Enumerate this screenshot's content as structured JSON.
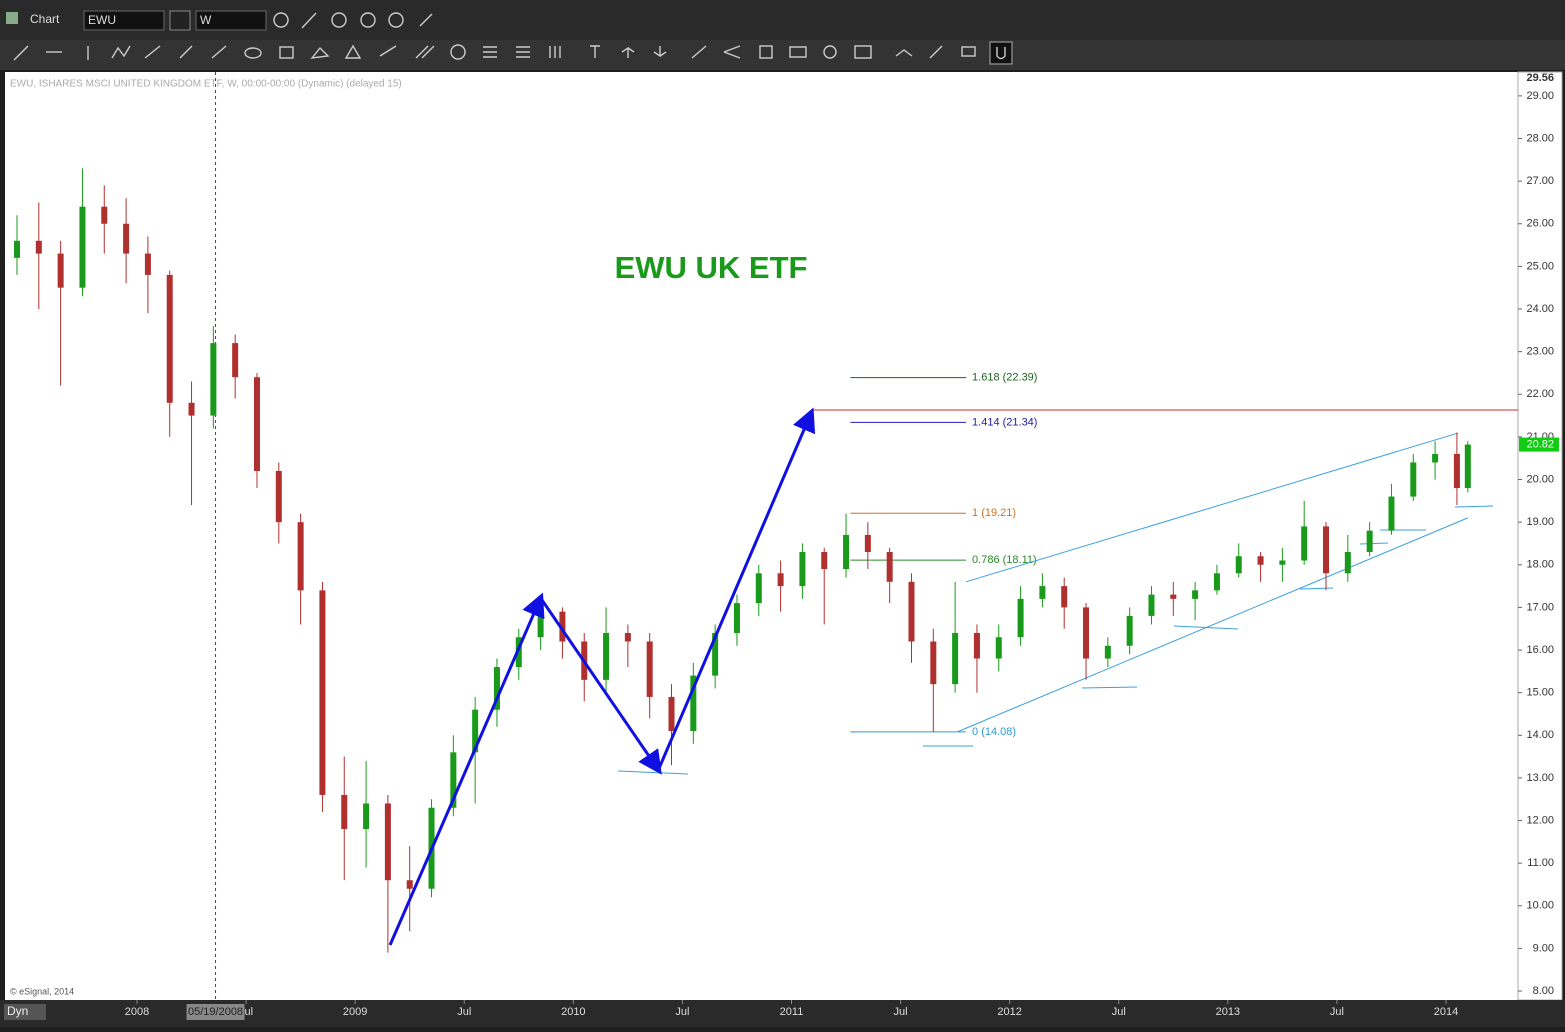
{
  "ui": {
    "window_title": "Chart",
    "symbol": "EWU",
    "interval": "W",
    "mode": "Dyn",
    "cursor_date": "05/19/2008"
  },
  "chart_data": {
    "type": "candlestick",
    "info": "EWU, ISHARES MSCI UNITED KINGDOM ETF, W, 00:00-00:00 (Dynamic) (delayed 15)",
    "credit": "© eSignal, 2014",
    "title": "EWU UK ETF",
    "up_color": "#1a9a1a",
    "down_color": "#b03030",
    "x": [
      2007.45,
      2007.55,
      2007.65,
      2007.75,
      2007.85,
      2007.95,
      2008.05,
      2008.15,
      2008.25,
      2008.35,
      2008.45,
      2008.55,
      2008.65,
      2008.75,
      2008.85,
      2008.95,
      2009.05,
      2009.15,
      2009.25,
      2009.35,
      2009.45,
      2009.55,
      2009.65,
      2009.75,
      2009.85,
      2009.95,
      2010.05,
      2010.15,
      2010.25,
      2010.35,
      2010.45,
      2010.55,
      2010.65,
      2010.75,
      2010.85,
      2010.95,
      2011.05,
      2011.15,
      2011.25,
      2011.35,
      2011.45,
      2011.55,
      2011.65,
      2011.75,
      2011.85,
      2011.95,
      2012.05,
      2012.15,
      2012.25,
      2012.35,
      2012.45,
      2012.55,
      2012.65,
      2012.75,
      2012.85,
      2012.95,
      2013.05,
      2013.15,
      2013.25,
      2013.35,
      2013.45,
      2013.55,
      2013.65,
      2013.75,
      2013.85,
      2013.95,
      2014.05,
      2014.1
    ],
    "open": [
      25.2,
      25.6,
      25.3,
      24.5,
      26.4,
      26.0,
      25.3,
      24.8,
      21.8,
      21.5,
      23.2,
      22.4,
      20.2,
      19.0,
      17.4,
      12.6,
      11.8,
      12.4,
      10.6,
      10.4,
      12.3,
      13.6,
      14.6,
      15.6,
      16.3,
      16.9,
      16.2,
      15.3,
      16.4,
      16.2,
      14.9,
      14.1,
      15.4,
      16.4,
      17.1,
      17.8,
      17.5,
      18.3,
      17.9,
      18.7,
      18.3,
      17.6,
      16.2,
      15.2,
      16.4,
      15.8,
      16.3,
      17.2,
      17.5,
      17.0,
      15.8,
      16.1,
      16.8,
      17.3,
      17.2,
      17.4,
      17.8,
      18.2,
      18.0,
      18.1,
      18.9,
      17.8,
      18.3,
      18.8,
      19.6,
      20.4,
      20.6,
      19.8
    ],
    "high": [
      26.2,
      26.5,
      25.6,
      27.3,
      26.9,
      26.6,
      25.7,
      24.9,
      22.3,
      23.6,
      23.4,
      22.5,
      20.4,
      19.2,
      17.6,
      13.5,
      13.4,
      12.6,
      11.4,
      12.5,
      14.0,
      14.9,
      15.8,
      16.5,
      17.2,
      17.0,
      16.4,
      17.0,
      16.6,
      16.4,
      15.2,
      15.7,
      16.6,
      17.3,
      18.0,
      18.1,
      18.5,
      18.4,
      19.2,
      19.0,
      18.4,
      17.8,
      16.5,
      17.6,
      16.6,
      16.6,
      17.5,
      17.8,
      17.7,
      17.1,
      16.3,
      17.0,
      17.5,
      17.6,
      17.6,
      18.0,
      18.5,
      18.3,
      18.4,
      19.5,
      19.0,
      18.7,
      19.0,
      19.9,
      20.6,
      20.9,
      21.1,
      20.9
    ],
    "low": [
      24.8,
      24.0,
      22.2,
      24.3,
      25.3,
      24.6,
      23.9,
      21.0,
      19.4,
      21.2,
      21.9,
      19.8,
      18.5,
      16.6,
      12.2,
      10.6,
      10.9,
      8.9,
      9.4,
      10.2,
      12.1,
      12.4,
      14.2,
      15.3,
      16.0,
      15.8,
      14.8,
      15.0,
      15.6,
      14.4,
      13.3,
      13.8,
      15.1,
      16.1,
      16.8,
      16.9,
      17.2,
      16.6,
      17.7,
      17.9,
      17.1,
      15.7,
      14.08,
      15.0,
      15.0,
      15.5,
      16.1,
      17.0,
      16.5,
      15.3,
      15.6,
      15.9,
      16.6,
      16.8,
      16.7,
      17.3,
      17.7,
      17.6,
      17.6,
      18.0,
      17.4,
      17.6,
      18.2,
      18.7,
      19.5,
      20.0,
      19.4,
      19.7
    ],
    "close": [
      25.6,
      25.3,
      24.5,
      26.4,
      26.0,
      25.3,
      24.8,
      21.8,
      21.5,
      23.2,
      22.4,
      20.2,
      19.0,
      17.4,
      12.6,
      11.8,
      12.4,
      10.6,
      10.4,
      12.3,
      13.6,
      14.6,
      15.6,
      16.3,
      16.9,
      16.2,
      15.3,
      16.4,
      16.2,
      14.9,
      14.1,
      15.4,
      16.4,
      17.1,
      17.8,
      17.5,
      18.3,
      17.9,
      18.7,
      18.3,
      17.6,
      16.2,
      15.2,
      16.4,
      15.8,
      16.3,
      17.2,
      17.5,
      17.0,
      15.8,
      16.1,
      16.8,
      17.3,
      17.2,
      17.4,
      17.8,
      18.2,
      18.0,
      18.1,
      18.9,
      17.8,
      18.3,
      18.8,
      19.6,
      20.4,
      20.6,
      19.8,
      20.82
    ],
    "xlim": [
      2007.395,
      2014.33
    ],
    "xticks": [
      2008,
      {
        "value": 2008.5,
        "label": "Jul"
      },
      2009,
      {
        "value": 2009.5,
        "label": "Jul"
      },
      2010,
      {
        "value": 2010.5,
        "label": "Jul"
      },
      2011,
      {
        "value": 2011.5,
        "label": "Jul"
      },
      2012,
      {
        "value": 2012.5,
        "label": "Jul"
      },
      2013,
      {
        "value": 2013.5,
        "label": "Jul"
      },
      2014
    ],
    "ylim": [
      7.79,
      29.56
    ],
    "yticks": [
      {
        "value": 8,
        "label": "8.00"
      },
      {
        "value": 9,
        "label": "9.00"
      },
      {
        "value": 10,
        "label": "10.00"
      },
      {
        "value": 11,
        "label": "11.00"
      },
      {
        "value": 12,
        "label": "12.00"
      },
      {
        "value": 13,
        "label": "13.00"
      },
      {
        "value": 14,
        "label": "14.00"
      },
      {
        "value": 15,
        "label": "15.00"
      },
      {
        "value": 16,
        "label": "16.00"
      },
      {
        "value": 17,
        "label": "17.00"
      },
      {
        "value": 18,
        "label": "18.00"
      },
      {
        "value": 19,
        "label": "19.00"
      },
      {
        "value": 20,
        "label": "20.00"
      },
      {
        "value": 21,
        "label": "21.00"
      },
      {
        "value": 22,
        "label": "22.00"
      },
      {
        "value": 23,
        "label": "23.00"
      },
      {
        "value": 24,
        "label": "24.00"
      },
      {
        "value": 25,
        "label": "25.00"
      },
      {
        "value": 26,
        "label": "26.00"
      },
      {
        "value": 27,
        "label": "27.00"
      },
      {
        "value": 28,
        "label": "28.00"
      },
      {
        "value": 29,
        "label": "29.00"
      }
    ],
    "cursor_x": 2008.36,
    "fib_x": [
      2011.27,
      2011.8
    ],
    "fib_levels": [
      {
        "value": 22.39,
        "label": "1.618 (22.39)",
        "color": "#1f5f1f"
      },
      {
        "value": 21.34,
        "label": "1.414 (21.34)",
        "color": "#2020b0"
      },
      {
        "value": 19.21,
        "label": "1 (19.21)",
        "color": "#d07020"
      },
      {
        "value": 18.11,
        "label": "0.786 (18.11)",
        "color": "#2a8a2a"
      },
      {
        "value": 14.08,
        "label": "0 (14.08)",
        "color": "#2b9ad8"
      }
    ],
    "resistance": {
      "value": 21.63,
      "x": [
        2011.09,
        2014.33
      ],
      "color": "#e05050"
    },
    "wave": {
      "x": [
        2009.16,
        2009.85,
        2010.39,
        2011.09
      ],
      "y": [
        9.08,
        17.22,
        13.19,
        21.56
      ],
      "color": "#1010e0"
    },
    "channel": [
      {
        "x": [
          2011.8,
          2014.055
        ],
        "y": [
          17.6,
          21.09
        ],
        "color": "#3aa0e0"
      },
      {
        "x": [
          2011.76,
          2014.1
        ],
        "y": [
          14.08,
          19.1
        ],
        "color": "#3aa0e0"
      }
    ]
  }
}
